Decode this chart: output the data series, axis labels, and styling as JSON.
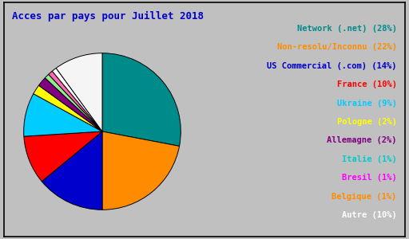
{
  "title": "Acces par pays pour Juillet 2018",
  "pct_labels": [
    "Network (.net) (28%)",
    "Non-resolu/Inconnu (22%)",
    "US Commercial (.com) (14%)",
    "France (10%)",
    "Ukraine (9%)",
    "Pologne (2%)",
    "Allemagne (2%)",
    "Italie (1%)",
    "Bresil (1%)",
    "Belgique (1%)",
    "Autre (10%)"
  ],
  "values": [
    28,
    22,
    14,
    10,
    9,
    2,
    2,
    1,
    1,
    1,
    10
  ],
  "pie_colors": [
    "#008B8B",
    "#FF8C00",
    "#0000CC",
    "#FF0000",
    "#00CCFF",
    "#FFFF00",
    "#800080",
    "#90EE90",
    "#FF69B4",
    "#FFFFFF",
    "#F5F5F5"
  ],
  "text_colors": [
    "#008B8B",
    "#FF8C00",
    "#0000CC",
    "#FF0000",
    "#00CCFF",
    "#FFFF00",
    "#800080",
    "#00CCCC",
    "#FF00FF",
    "#FF8C00",
    "#FFFFFF"
  ],
  "background_color": "#C0C0C0",
  "title_color": "#0000CC",
  "title_fontsize": 9,
  "legend_fontsize": 7.5,
  "startangle": 90
}
